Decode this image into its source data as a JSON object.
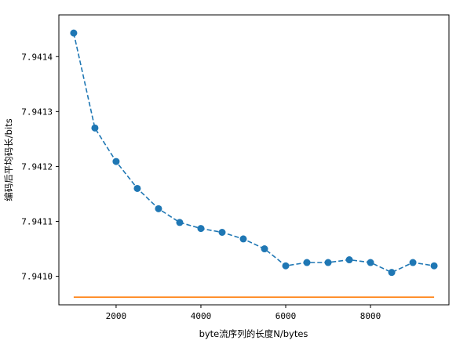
{
  "chart_data": {
    "type": "line",
    "title": "",
    "xlabel": "byte流序列的长度N/bytes",
    "ylabel": "编码后平均码长/bits",
    "xlim": [
      650,
      9850
    ],
    "ylim": [
      7.940948,
      7.941476
    ],
    "xticks": [
      2000,
      4000,
      6000,
      8000
    ],
    "xtick_labels": [
      "2000",
      "4000",
      "6000",
      "8000"
    ],
    "yticks": [
      7.941,
      7.9411,
      7.9412,
      7.9413,
      7.9414
    ],
    "ytick_labels": [
      "7.9410",
      "7.9411",
      "7.9412",
      "7.9413",
      "7.9414"
    ],
    "grid": false,
    "series": [
      {
        "color": "#1f77b4",
        "linestyle": "dashed",
        "marker": "circle",
        "x": [
          1000,
          1500,
          2000,
          2500,
          3000,
          3500,
          4000,
          4500,
          5000,
          5500,
          6000,
          6500,
          7000,
          7500,
          8000,
          8500,
          9000,
          9500
        ],
        "y": [
          7.941443,
          7.94127,
          7.941209,
          7.94116,
          7.941123,
          7.941098,
          7.941087,
          7.94108,
          7.941068,
          7.94105,
          7.941019,
          7.941025,
          7.941025,
          7.94103,
          7.941025,
          7.941007,
          7.941025,
          7.941019
        ]
      },
      {
        "color": "#ff7f0e",
        "linestyle": "solid",
        "marker": "none",
        "x": [
          1000,
          9500
        ],
        "y": [
          7.940962,
          7.940962
        ]
      }
    ]
  }
}
